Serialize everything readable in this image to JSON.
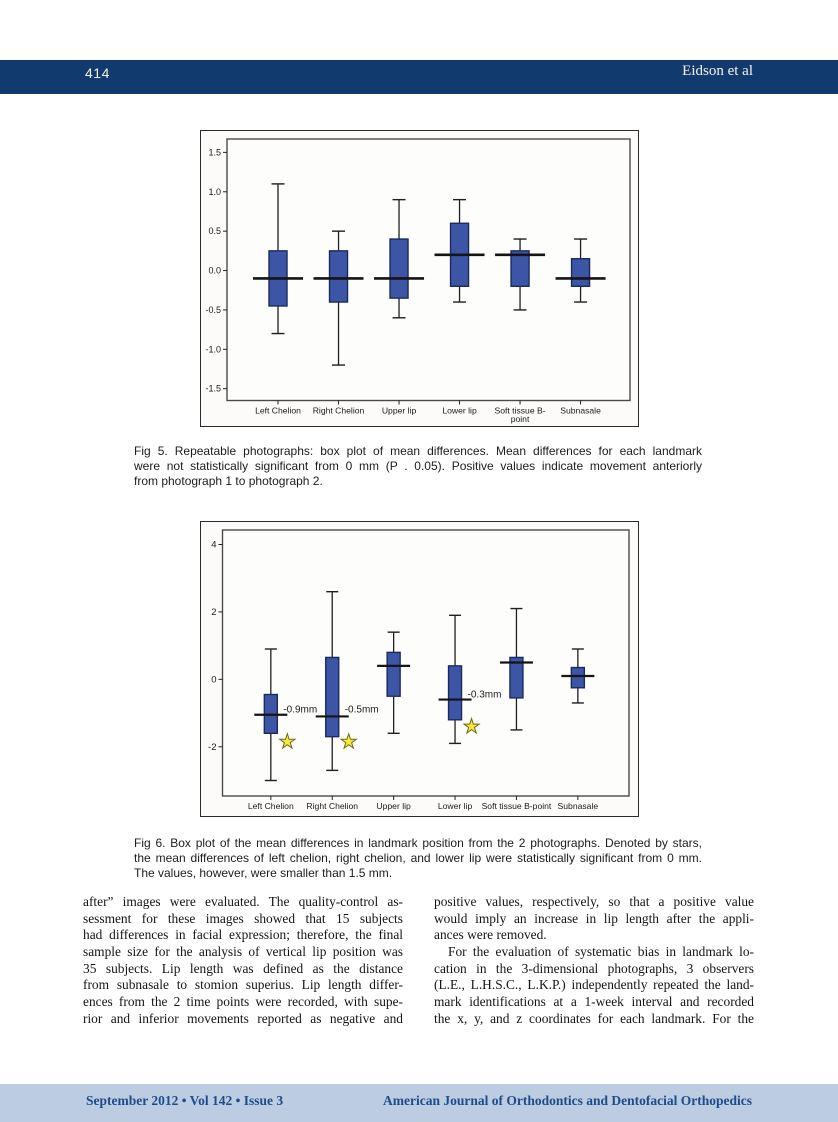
{
  "header": {
    "page_number": "414",
    "running_head": "Eidson et al"
  },
  "figures": [
    {
      "caption_lines": [
        {
          "text": "Fig 5.  Repeatable photographs: box plot of mean differences. Mean differences for each landmark",
          "justify": true
        },
        {
          "text": "were not statistically significant from 0 mm (P . 0.05). Positive values indicate movement anteriorly",
          "justify": true
        },
        {
          "text": "from photograph 1 to photograph 2.",
          "justify": false
        }
      ]
    },
    {
      "caption_lines": [
        {
          "text": "Fig 6.  Box plot of the mean differences in landmark position from the 2 photographs. Denoted by stars,",
          "justify": true
        },
        {
          "text": "the mean differences of left chelion, right chelion, and lower lip were statistically significant from 0 mm.",
          "justify": true
        },
        {
          "text": "The values, however, were smaller than 1.5 mm.",
          "justify": false
        }
      ]
    }
  ],
  "chart_data": [
    {
      "type": "box",
      "title": "",
      "xlabel": "",
      "ylabel": "",
      "categories": [
        "Left Chelion",
        "Right Chelion",
        "Upper lip",
        "Lower lip",
        "Soft tissue B-\npoint",
        "Subnasale"
      ],
      "ylim": [
        -1.65,
        1.67
      ],
      "yticks": [
        {
          "v": 1.5,
          "label": "1.5"
        },
        {
          "v": 1.0,
          "label": "1.0"
        },
        {
          "v": 0.5,
          "label": "0.5"
        },
        {
          "v": 0.0,
          "label": "0.0"
        },
        {
          "v": -0.5,
          "label": "-0.5"
        },
        {
          "v": -1.0,
          "label": "-1.0"
        },
        {
          "v": -1.5,
          "label": "-1.5"
        }
      ],
      "series": [
        {
          "name": "Left Chelion",
          "whisker_low": -0.8,
          "q1": -0.45,
          "median": -0.1,
          "q3": 0.25,
          "whisker_high": 1.1
        },
        {
          "name": "Right Chelion",
          "whisker_low": -1.2,
          "q1": -0.4,
          "median": -0.1,
          "q3": 0.25,
          "whisker_high": 0.5
        },
        {
          "name": "Upper lip",
          "whisker_low": -0.6,
          "q1": -0.35,
          "median": -0.1,
          "q3": 0.4,
          "whisker_high": 0.9
        },
        {
          "name": "Lower lip",
          "whisker_low": -0.4,
          "q1": -0.2,
          "median": 0.2,
          "q3": 0.6,
          "whisker_high": 0.9
        },
        {
          "name": "Soft tissue B-point",
          "whisker_low": -0.5,
          "q1": -0.2,
          "median": 0.2,
          "q3": 0.25,
          "whisker_high": 0.4
        },
        {
          "name": "Subnasale",
          "whisker_low": -0.4,
          "q1": -0.2,
          "median": -0.1,
          "q3": 0.15,
          "whisker_high": 0.4
        }
      ],
      "annotations": [],
      "stars": [],
      "colors": {
        "box_fill": "#3d55a5",
        "box_stroke": "#1b2a5e",
        "line": "#1f1f1f",
        "frame": "#4a4a4a",
        "star_fill": "#f9e93b",
        "star_stroke": "#6b6b1e"
      }
    },
    {
      "type": "box",
      "title": "",
      "xlabel": "",
      "ylabel": "",
      "categories": [
        "Left Chelion",
        "Right Chelion",
        "Upper lip",
        "Lower lip",
        "Soft tissue B-point",
        "Subnasale"
      ],
      "ylim": [
        -3.46,
        4.43
      ],
      "yticks": [
        {
          "v": 4,
          "label": "4"
        },
        {
          "v": 2,
          "label": "2"
        },
        {
          "v": 0,
          "label": "0"
        },
        {
          "v": -2,
          "label": "-2"
        }
      ],
      "series": [
        {
          "name": "Left Chelion",
          "whisker_low": -3.0,
          "q1": -1.6,
          "median": -1.05,
          "q3": -0.45,
          "whisker_high": 0.9
        },
        {
          "name": "Right Chelion",
          "whisker_low": -2.7,
          "q1": -1.7,
          "median": -1.1,
          "q3": 0.65,
          "whisker_high": 2.6
        },
        {
          "name": "Upper lip",
          "whisker_low": -1.6,
          "q1": -0.5,
          "median": 0.4,
          "q3": 0.8,
          "whisker_high": 1.4
        },
        {
          "name": "Lower lip",
          "whisker_low": -1.9,
          "q1": -1.2,
          "median": -0.6,
          "q3": 0.4,
          "whisker_high": 1.9
        },
        {
          "name": "Soft tissue B-point",
          "whisker_low": -1.5,
          "q1": -0.55,
          "median": 0.5,
          "q3": 0.65,
          "whisker_high": 2.1
        },
        {
          "name": "Subnasale",
          "whisker_low": -0.7,
          "q1": -0.25,
          "median": 0.1,
          "q3": 0.35,
          "whisker_high": 0.9
        }
      ],
      "annotations": [
        {
          "series": 0,
          "text": "-0.9mm",
          "y": -0.88
        },
        {
          "series": 1,
          "text": "-0.5mm",
          "y": -0.88
        },
        {
          "series": 3,
          "text": "-0.3mm",
          "y": -0.44
        }
      ],
      "stars": [
        {
          "series": 0,
          "y": -1.85
        },
        {
          "series": 1,
          "y": -1.85
        },
        {
          "series": 3,
          "y": -1.4
        }
      ],
      "colors": {
        "box_fill": "#3d55a5",
        "box_stroke": "#1b2a5e",
        "line": "#1f1f1f",
        "frame": "#4a4a4a",
        "star_fill": "#f9e93b",
        "star_stroke": "#6b6b1e"
      }
    }
  ],
  "body": {
    "left_column_lines": [
      {
        "text": "after” images were evaluated. The quality-control as-",
        "justify": true
      },
      {
        "text": "sessment for these images showed that 15 subjects",
        "justify": true
      },
      {
        "text": "had differences in facial expression; therefore, the final",
        "justify": true
      },
      {
        "text": "sample size for the analysis of vertical lip position was",
        "justify": true
      },
      {
        "text": "35 subjects. Lip length was defined as the distance",
        "justify": true
      },
      {
        "text": "from subnasale to stomion superius. Lip length differ-",
        "justify": true
      },
      {
        "text": "ences from the 2 time points were recorded, with supe-",
        "justify": true
      },
      {
        "text": "rior and inferior movements reported as negative and",
        "justify": true
      }
    ],
    "right_column_lines": [
      {
        "text": "positive values, respectively, so that a positive value",
        "justify": true
      },
      {
        "text": "would imply an increase in lip length after the appli-",
        "justify": true
      },
      {
        "text": "ances were removed.",
        "justify": false
      },
      {
        "text": "For the evaluation of systematic bias in landmark lo-",
        "justify": true,
        "indent": true
      },
      {
        "text": "cation in the 3-dimensional photographs, 3 observers",
        "justify": true
      },
      {
        "text": "(L.E., L.H.S.C., L.K.P.) independently repeated the land-",
        "justify": true
      },
      {
        "text": "mark identifications at a 1-week interval and recorded",
        "justify": true
      },
      {
        "text": "the x, y, and z coordinates for each landmark. For the",
        "justify": true
      }
    ]
  },
  "footer": {
    "issue_line": "September 2012 • Vol 142 • Issue 3",
    "journal_line": "American Journal of Orthodontics and Dentofacial Orthopedics"
  }
}
